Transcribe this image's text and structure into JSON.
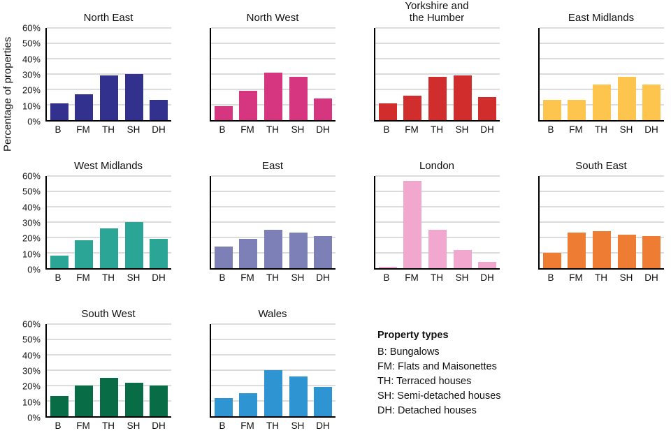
{
  "ylabel": "Percentage of properties",
  "legend": {
    "title": "Property types",
    "items": [
      "B: Bungalows",
      "FM: Flats and Maisonettes",
      "TH: Terraced houses",
      "SH: Semi-detached houses",
      "DH: Detached houses"
    ]
  },
  "chart_data": {
    "type": "bar",
    "categories": [
      "B",
      "FM",
      "TH",
      "SH",
      "DH"
    ],
    "ylabel": "Percentage of properties",
    "ylim": [
      0,
      60
    ],
    "yticks": [
      0,
      10,
      20,
      30,
      40,
      50,
      60
    ],
    "grid": true,
    "charts": [
      {
        "title": "North East",
        "color": "#32328e",
        "values": [
          11,
          17,
          29,
          30,
          13
        ]
      },
      {
        "title": "North West",
        "color": "#d63580",
        "values": [
          9,
          19,
          31,
          28,
          14
        ]
      },
      {
        "title": "Yorkshire and\nthe Humber",
        "color": "#d22d2d",
        "values": [
          11,
          16,
          28,
          29,
          15
        ]
      },
      {
        "title": "East Midlands",
        "color": "#fdc44e",
        "values": [
          13,
          13,
          23,
          28,
          23
        ]
      },
      {
        "title": "West Midlands",
        "color": "#2ba696",
        "values": [
          8,
          18,
          26,
          30,
          19
        ]
      },
      {
        "title": "East",
        "color": "#7d80b6",
        "values": [
          14,
          19,
          25,
          23,
          21
        ]
      },
      {
        "title": "London",
        "color": "#f2a7cf",
        "values": [
          1,
          57,
          25,
          12,
          4
        ]
      },
      {
        "title": "South East",
        "color": "#ee7d33",
        "values": [
          10,
          23,
          24,
          22,
          21
        ]
      },
      {
        "title": "South West",
        "color": "#086c46",
        "values": [
          13,
          20,
          25,
          22,
          20
        ]
      },
      {
        "title": "Wales",
        "color": "#2e95d2",
        "values": [
          12,
          15,
          30,
          26,
          19
        ]
      }
    ]
  }
}
